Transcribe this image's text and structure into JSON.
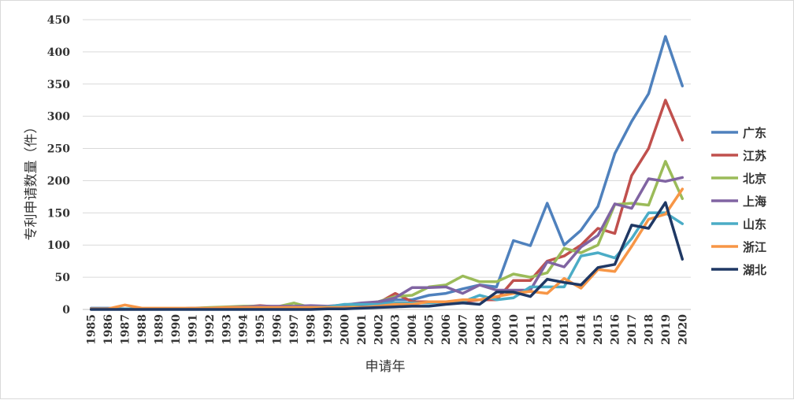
{
  "chart_data": {
    "type": "line",
    "title": "",
    "xlabel": "申请年",
    "ylabel": "专利申请数量（件）",
    "ylim": [
      0,
      450
    ],
    "yticks": [
      0,
      50,
      100,
      150,
      200,
      250,
      300,
      350,
      400,
      450
    ],
    "grid": "horizontal",
    "legend_position": "right",
    "x": [
      "1985",
      "1986",
      "1987",
      "1988",
      "1989",
      "1990",
      "1991",
      "1992",
      "1993",
      "1994",
      "1995",
      "1996",
      "1997",
      "1998",
      "1999",
      "2000",
      "2001",
      "2002",
      "2003",
      "2004",
      "2005",
      "2006",
      "2007",
      "2008",
      "2009",
      "2010",
      "2011",
      "2012",
      "2013",
      "2014",
      "2015",
      "2016",
      "2017",
      "2018",
      "2019",
      "2020"
    ],
    "series": [
      {
        "name": "广东",
        "color": "#4f81bd",
        "values": [
          2,
          2,
          1,
          1,
          1,
          1,
          2,
          2,
          2,
          3,
          3,
          3,
          3,
          3,
          3,
          4,
          5,
          8,
          15,
          15,
          22,
          25,
          32,
          38,
          35,
          107,
          99,
          165,
          100,
          123,
          160,
          242,
          292,
          335,
          424,
          347
        ]
      },
      {
        "name": "江苏",
        "color": "#c0504d",
        "values": [
          1,
          1,
          1,
          1,
          1,
          1,
          1,
          2,
          3,
          4,
          6,
          4,
          3,
          4,
          4,
          5,
          6,
          10,
          25,
          12,
          12,
          10,
          12,
          15,
          15,
          45,
          45,
          75,
          83,
          100,
          126,
          118,
          208,
          250,
          325,
          263
        ]
      },
      {
        "name": "北京",
        "color": "#9bbb59",
        "values": [
          1,
          1,
          1,
          1,
          1,
          1,
          2,
          3,
          4,
          5,
          5,
          4,
          10,
          3,
          4,
          6,
          8,
          12,
          20,
          22,
          35,
          38,
          52,
          43,
          43,
          55,
          50,
          57,
          95,
          88,
          100,
          163,
          165,
          162,
          230,
          172
        ]
      },
      {
        "name": "上海",
        "color": "#8064a2",
        "values": [
          1,
          1,
          1,
          1,
          1,
          1,
          2,
          2,
          3,
          4,
          5,
          5,
          5,
          6,
          5,
          7,
          10,
          12,
          18,
          34,
          34,
          35,
          25,
          38,
          30,
          30,
          30,
          74,
          66,
          97,
          115,
          164,
          157,
          203,
          199,
          205
        ]
      },
      {
        "name": "山东",
        "color": "#4bacc6",
        "values": [
          1,
          1,
          1,
          1,
          1,
          1,
          1,
          1,
          2,
          2,
          2,
          2,
          3,
          3,
          4,
          8,
          8,
          8,
          10,
          10,
          10,
          12,
          12,
          22,
          15,
          18,
          35,
          35,
          35,
          83,
          88,
          80,
          110,
          150,
          150,
          133
        ]
      },
      {
        "name": "浙江",
        "color": "#f79646",
        "values": [
          1,
          1,
          7,
          2,
          2,
          2,
          2,
          2,
          3,
          3,
          3,
          3,
          3,
          3,
          3,
          3,
          3,
          5,
          8,
          8,
          12,
          12,
          15,
          15,
          20,
          25,
          28,
          25,
          48,
          33,
          62,
          59,
          98,
          140,
          148,
          187
        ]
      },
      {
        "name": "湖北",
        "color": "#1f3864",
        "values": [
          0,
          0,
          0,
          0,
          0,
          0,
          0,
          0,
          0,
          0,
          0,
          0,
          0,
          0,
          1,
          1,
          2,
          3,
          4,
          5,
          5,
          8,
          10,
          8,
          27,
          27,
          20,
          47,
          42,
          38,
          65,
          70,
          131,
          126,
          166,
          78
        ]
      }
    ]
  }
}
